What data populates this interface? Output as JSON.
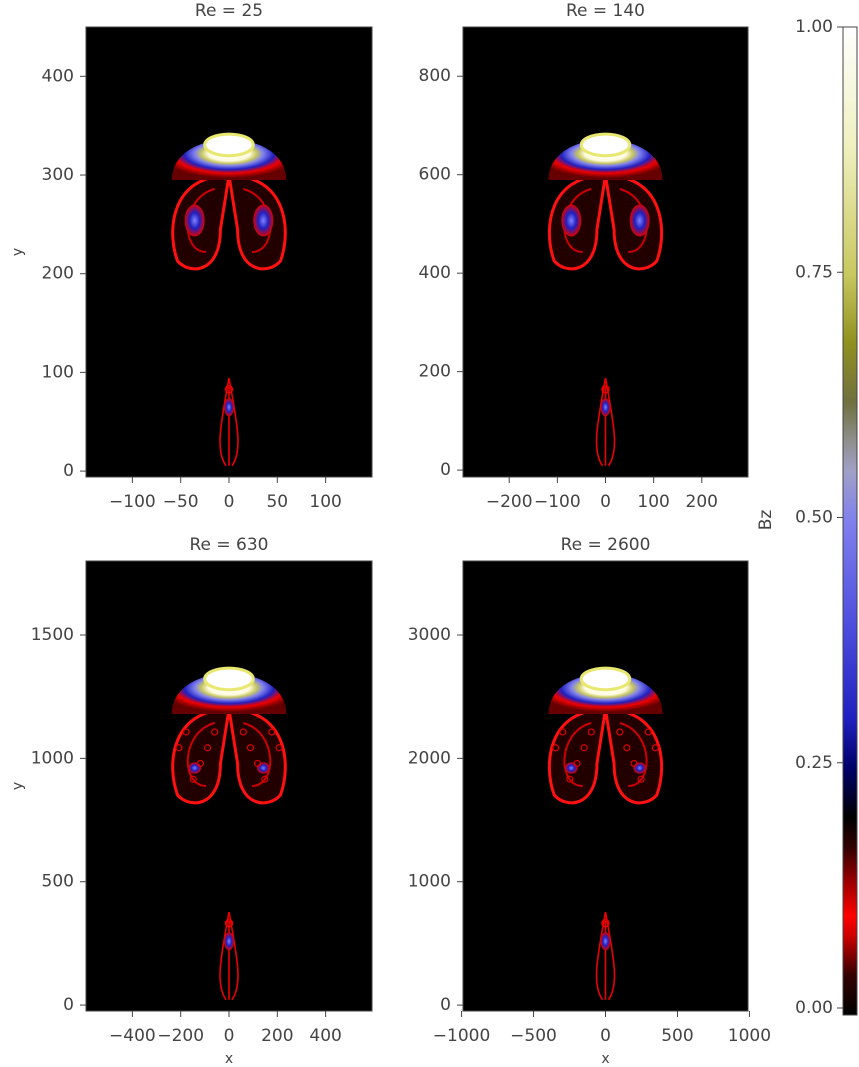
{
  "chart_data": [
    {
      "type": "image",
      "title": "Re = 25",
      "xlim": [
        -148,
        148
      ],
      "ylim": [
        -6,
        450
      ],
      "xticks": [
        {
          "value": -100,
          "label": "−100"
        },
        {
          "value": -50,
          "label": "−50"
        },
        0,
        50,
        100
      ],
      "yticks": [
        0,
        100,
        200,
        300,
        400
      ],
      "ylabel": "y"
    },
    {
      "type": "image",
      "title": "Re = 140",
      "xlim": [
        -296,
        296
      ],
      "ylim": [
        -14,
        900
      ],
      "xticks": [
        {
          "value": -200,
          "label": "−200"
        },
        {
          "value": -100,
          "label": "−100"
        },
        0,
        100,
        200
      ],
      "yticks": [
        0,
        200,
        400,
        600,
        800
      ]
    },
    {
      "type": "image",
      "title": "Re = 630",
      "xlim": [
        -592,
        592
      ],
      "ylim": [
        -24,
        1800
      ],
      "xticks": [
        {
          "value": -400,
          "label": "−400"
        },
        {
          "value": -200,
          "label": "−200"
        },
        0,
        200,
        400
      ],
      "yticks": [
        0,
        500,
        1000,
        1500
      ],
      "xlabel": "x",
      "ylabel": "y"
    },
    {
      "type": "image",
      "title": "Re = 2600",
      "xlim": [
        -990,
        990
      ],
      "ylim": [
        -48,
        3600
      ],
      "xticks": [
        {
          "value": -1000,
          "label": "−1000"
        },
        {
          "value": -500,
          "label": "−500"
        },
        0,
        500,
        1000
      ],
      "yticks": [
        0,
        1000,
        2000,
        3000
      ],
      "xlabel": "x"
    },
    {
      "type": "colorbar",
      "label": "Bz",
      "ylim": [
        0,
        1
      ],
      "yticks": [
        {
          "value": 0,
          "label": "0.00"
        },
        {
          "value": 0.25,
          "label": "0.25"
        },
        {
          "value": 0.5,
          "label": "0.50"
        },
        {
          "value": 0.75,
          "label": "0.75"
        },
        {
          "value": 1,
          "label": "1.00"
        }
      ]
    }
  ]
}
